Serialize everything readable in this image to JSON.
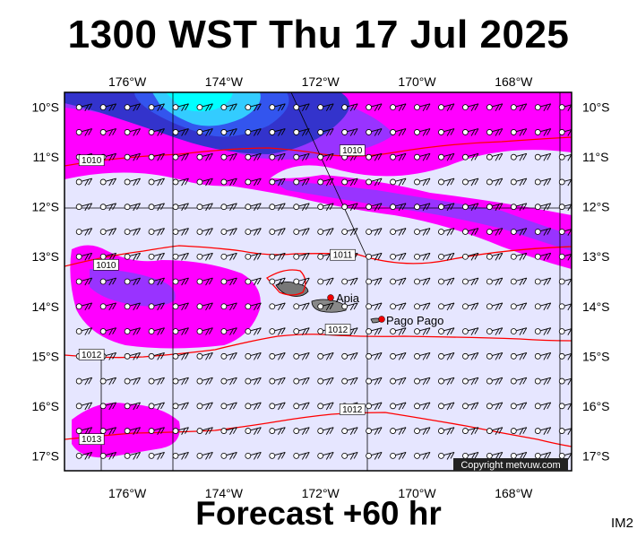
{
  "title": "1300 WST Thu 17 Jul 2025",
  "footer": "Forecast +60 hr",
  "image_code": "IM2",
  "copyright": "Copyright metvuw.com",
  "cities": [
    {
      "name": "Apia",
      "lon": -171.76,
      "lat": -13.83
    },
    {
      "name": "Pago Pago",
      "lon": -170.7,
      "lat": -14.28
    }
  ],
  "colors": {
    "background": "#e6e6ff",
    "rain_light": "#ff00ff",
    "rain_moderate": "#9933ff",
    "rain_heavy": "#3333cc",
    "rain_very_heavy": "#00ffff",
    "isobar": "#ff0000",
    "grid": "#000000"
  },
  "chart_data": {
    "type": "map",
    "lon_range": [
      -177.3,
      -166.8
    ],
    "lat_range": [
      -9.7,
      -17.3
    ],
    "lon_ticks": [
      "176°W",
      "174°W",
      "172°W",
      "170°W",
      "168°W"
    ],
    "lat_ticks": [
      "10°S",
      "11°S",
      "12°S",
      "13°S",
      "14°S",
      "15°S",
      "16°S",
      "17°S"
    ],
    "isobar_labels": [
      {
        "text": "1010",
        "lon": -177.0,
        "lat": -11.1
      },
      {
        "text": "1010",
        "lon": -171.6,
        "lat": -10.9
      },
      {
        "text": "1010",
        "lon": -176.7,
        "lat": -13.2
      },
      {
        "text": "1011",
        "lon": -171.8,
        "lat": -13.0
      },
      {
        "text": "1012",
        "lon": -171.9,
        "lat": -14.5
      },
      {
        "text": "1012",
        "lon": -177.0,
        "lat": -15.0
      },
      {
        "text": "1012",
        "lon": -171.6,
        "lat": -16.1
      },
      {
        "text": "1013",
        "lon": -177.0,
        "lat": -16.7
      }
    ]
  }
}
